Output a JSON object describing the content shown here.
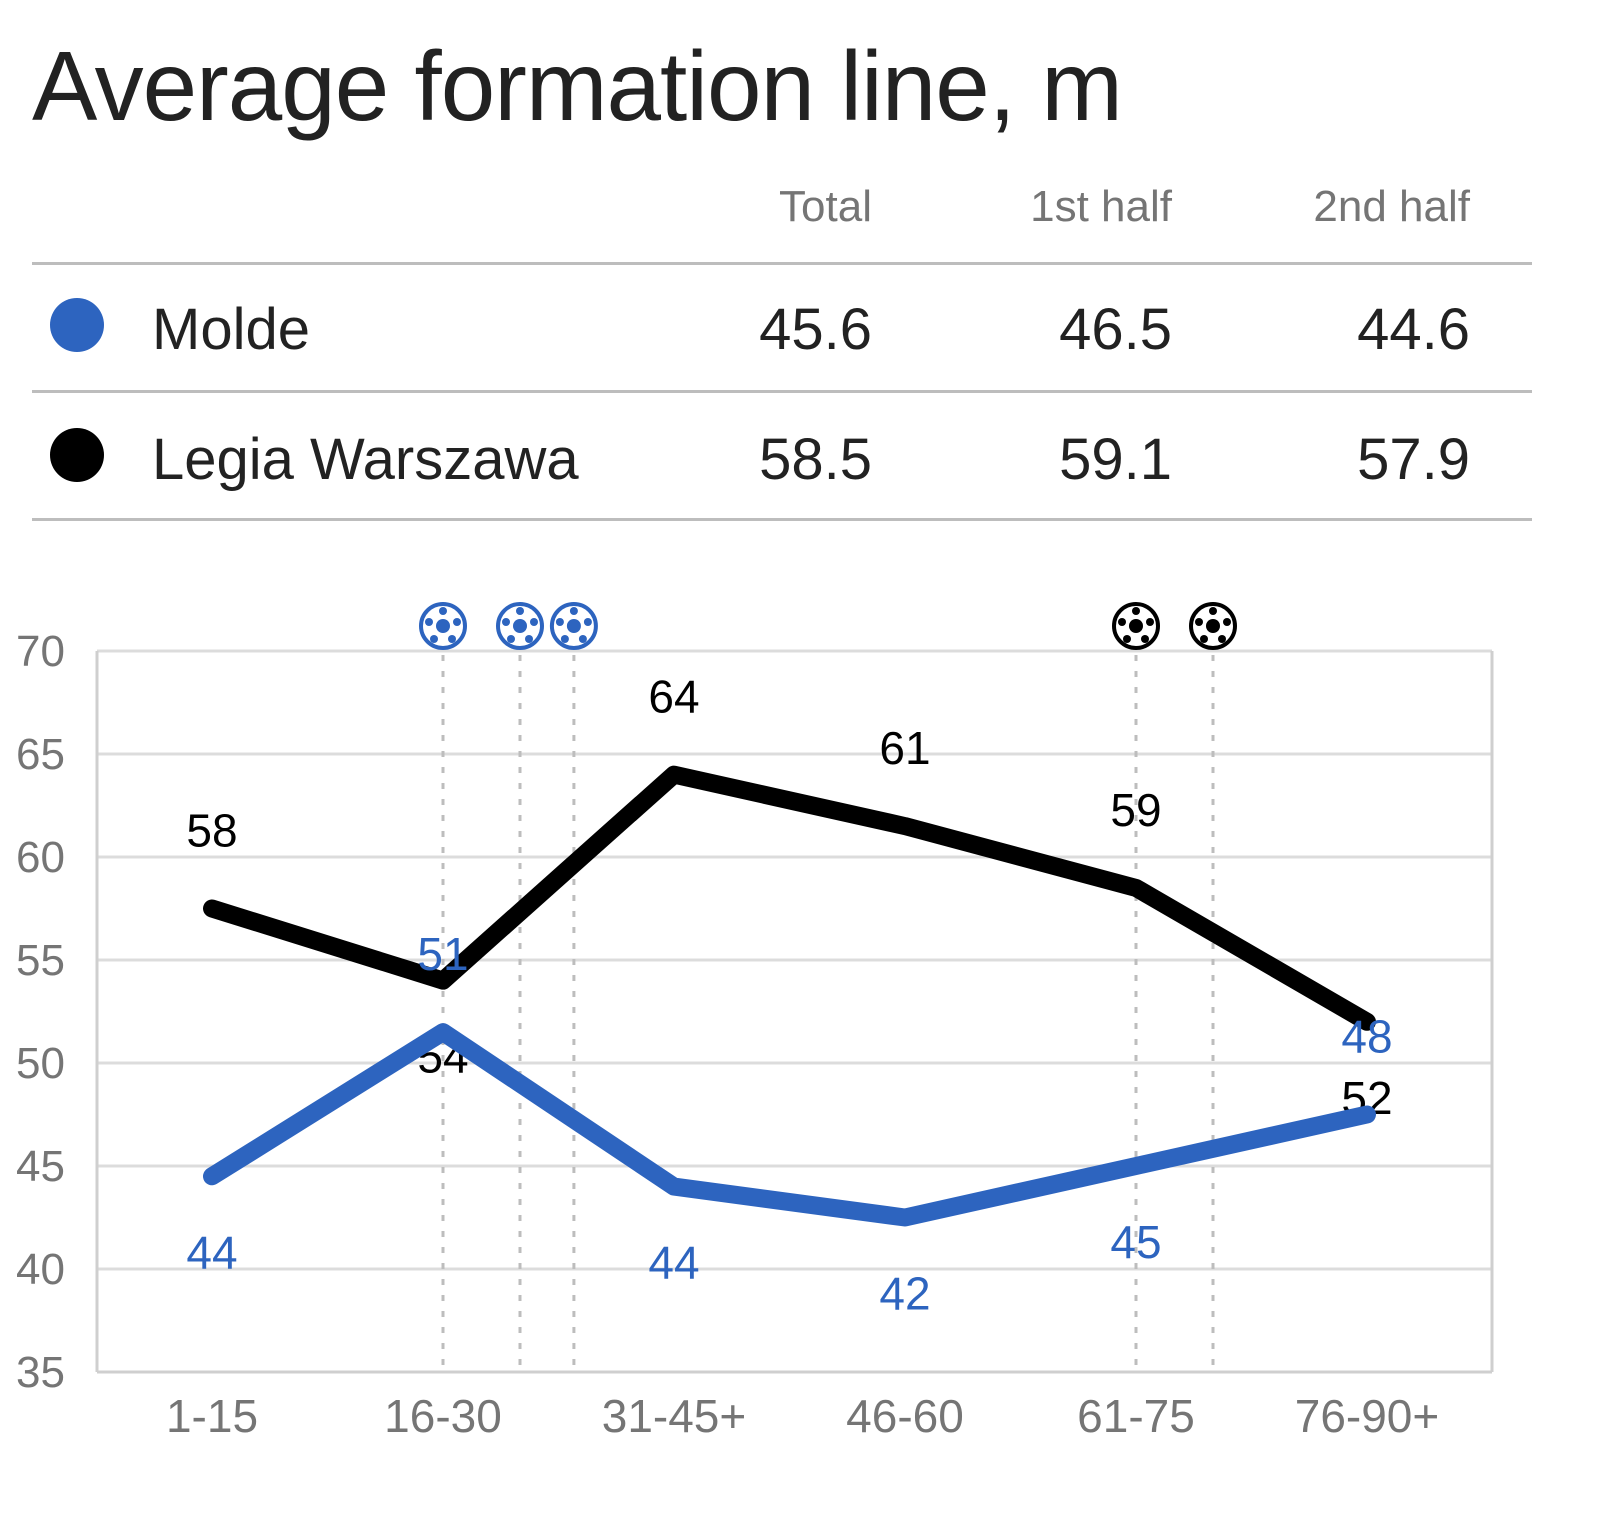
{
  "title": "Average formation line, m",
  "table": {
    "columns": [
      "Total",
      "1st half",
      "2nd half"
    ],
    "rows": [
      {
        "team": "Molde",
        "color": "#2d64bf",
        "values": [
          "45.6",
          "46.5",
          "44.6"
        ]
      },
      {
        "team": "Legia Warszawa",
        "color": "#000000",
        "values": [
          "58.5",
          "59.1",
          "57.9"
        ]
      }
    ]
  },
  "chart_data": {
    "type": "line",
    "categories": [
      "1-15",
      "16-30",
      "31-45+",
      "46-60",
      "61-75",
      "76-90+"
    ],
    "ylim": [
      35,
      70
    ],
    "yticks": [
      70,
      65,
      60,
      55,
      50,
      45,
      40,
      35
    ],
    "grid": true,
    "series": [
      {
        "name": "Legia Warszawa",
        "color": "#000000",
        "values": [
          57.5,
          54,
          64,
          61.5,
          58.5,
          52
        ],
        "labels": [
          "58",
          "54",
          "64",
          "61",
          "59",
          "52"
        ]
      },
      {
        "name": "Molde",
        "color": "#2d64bf",
        "values": [
          44.5,
          51.5,
          44,
          42.5,
          45,
          47.5
        ],
        "labels": [
          "44",
          "51",
          "44",
          "42",
          "45",
          "48"
        ]
      }
    ],
    "goal_markers": [
      {
        "team": "Molde",
        "color": "#2d64bf",
        "minute": 23
      },
      {
        "team": "Molde",
        "color": "#2d64bf",
        "minute": 28
      },
      {
        "team": "Molde",
        "color": "#2d64bf",
        "minute": 31.5
      },
      {
        "team": "Legia Warszawa",
        "color": "#000000",
        "minute": 68
      },
      {
        "team": "Legia Warszawa",
        "color": "#000000",
        "minute": 73
      }
    ]
  }
}
